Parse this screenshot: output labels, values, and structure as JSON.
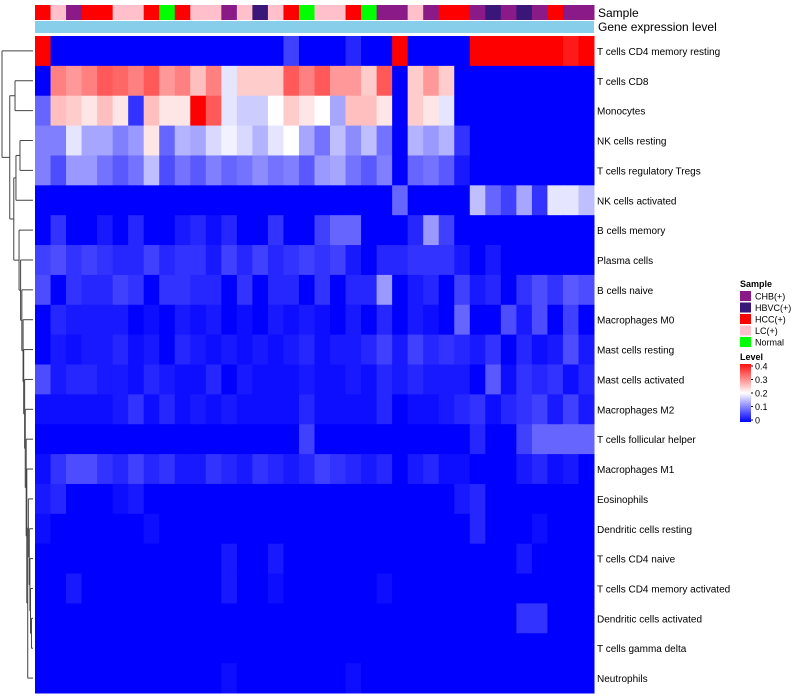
{
  "chart_data": {
    "type": "heatmap",
    "annotation_labels": {
      "sample": "Sample",
      "expression": "Gene expression level"
    },
    "rows": [
      "T cells CD4 memory resting",
      "T cells CD8",
      "Monocytes",
      "NK cells resting",
      "T cells regulatory  Tregs",
      "NK cells activated",
      "B cells memory",
      "Plasma cells",
      "B cells naive",
      "Macrophages M0",
      "Mast cells resting",
      "Mast cells activated",
      "Macrophages M2",
      "T cells follicular helper",
      "Macrophages M1",
      "Eosinophils",
      "Dendritic cells resting",
      "T cells CD4 naive",
      "T cells CD4 memory activated",
      "Dendritic cells activated",
      "T cells gamma delta",
      "Neutrophils"
    ],
    "sample_groups": [
      "HCC(+)",
      "LC(+)",
      "CHB(+)",
      "HCC(+)",
      "HCC(+)",
      "LC(+)",
      "LC(+)",
      "HCC(+)",
      "Normal",
      "HCC(+)",
      "LC(+)",
      "LC(+)",
      "CHB(+)",
      "LC(+)",
      "HBVC(+)",
      "LC(+)",
      "HCC(+)",
      "Normal",
      "LC(+)",
      "LC(+)",
      "HCC(+)",
      "Normal",
      "CHB(+)",
      "CHB(+)",
      "LC(+)",
      "CHB(+)",
      "HCC(+)",
      "HCC(+)",
      "CHB(+)",
      "HBVC(+)",
      "CHB(+)",
      "HBVC(+)",
      "CHB(+)",
      "HCC(+)",
      "CHB(+)",
      "CHB(+)"
    ],
    "values": [
      [
        0.4,
        0,
        0,
        0,
        0,
        0,
        0,
        0,
        0,
        0,
        0,
        0,
        0,
        0,
        0,
        0,
        0.05,
        0,
        0,
        0,
        0.03,
        0,
        0,
        0.4,
        0,
        0,
        0,
        0,
        0.4,
        0.4,
        0.4,
        0.4,
        0.4,
        0.4,
        0.38,
        0.4
      ],
      [
        0,
        0.3,
        0.28,
        0.3,
        0.33,
        0.32,
        0.3,
        0.33,
        0.28,
        0.3,
        0.25,
        0.3,
        0.18,
        0.24,
        0.24,
        0.24,
        0.33,
        0.3,
        0.33,
        0.28,
        0.28,
        0.24,
        0.33,
        0,
        0.24,
        0.28,
        0.24,
        0,
        0,
        0,
        0,
        0,
        0,
        0,
        0,
        0
      ],
      [
        0.08,
        0.25,
        0.24,
        0.22,
        0.25,
        0.22,
        0.04,
        0.25,
        0.22,
        0.22,
        0.4,
        0.33,
        0.18,
        0.16,
        0.16,
        0.2,
        0.24,
        0.22,
        0.2,
        0.13,
        0.25,
        0.25,
        0.22,
        0,
        0.24,
        0.22,
        0.18,
        0,
        0,
        0,
        0,
        0,
        0,
        0,
        0,
        0
      ],
      [
        0.1,
        0.1,
        0.18,
        0.13,
        0.13,
        0.1,
        0.12,
        0.22,
        0.08,
        0.14,
        0.13,
        0.17,
        0.19,
        0.17,
        0.14,
        0.18,
        0.2,
        0.13,
        0.09,
        0.15,
        0.11,
        0.15,
        0.09,
        0,
        0.14,
        0.12,
        0.14,
        0.04,
        0,
        0,
        0,
        0,
        0,
        0,
        0,
        0
      ],
      [
        0.1,
        0.06,
        0.12,
        0.12,
        0.09,
        0.07,
        0.09,
        0.15,
        0.06,
        0.09,
        0.07,
        0.1,
        0.08,
        0.09,
        0.11,
        0.09,
        0.1,
        0.07,
        0.12,
        0.13,
        0.09,
        0.07,
        0.1,
        0,
        0.08,
        0.09,
        0.07,
        0.02,
        0,
        0,
        0,
        0,
        0,
        0,
        0,
        0
      ],
      [
        0,
        0,
        0,
        0,
        0,
        0,
        0,
        0,
        0,
        0,
        0,
        0,
        0,
        0,
        0,
        0,
        0,
        0,
        0,
        0,
        0,
        0,
        0,
        0.08,
        0,
        0,
        0,
        0,
        0.15,
        0.08,
        0.05,
        0.13,
        0.04,
        0.18,
        0.18,
        0.15
      ],
      [
        0,
        0.04,
        0,
        0,
        0.02,
        0,
        0.03,
        0,
        0,
        0.02,
        0.03,
        0.01,
        0.03,
        0,
        0,
        0.04,
        0,
        0,
        0.05,
        0.08,
        0.08,
        0,
        0,
        0,
        0.03,
        0.12,
        0.05,
        0,
        0,
        0,
        0,
        0,
        0,
        0,
        0,
        0
      ],
      [
        0.05,
        0.06,
        0.04,
        0.05,
        0.04,
        0.03,
        0.03,
        0.05,
        0.03,
        0.04,
        0.04,
        0.02,
        0.05,
        0.03,
        0.05,
        0.03,
        0.04,
        0.05,
        0.04,
        0.05,
        0.02,
        0,
        0.03,
        0.03,
        0.04,
        0.04,
        0.04,
        0.02,
        0,
        0.02,
        0,
        0,
        0,
        0,
        0,
        0
      ],
      [
        0.06,
        0,
        0.04,
        0.03,
        0.03,
        0.05,
        0.04,
        0,
        0.04,
        0.04,
        0.03,
        0.03,
        0,
        0.04,
        0,
        0.03,
        0.03,
        0,
        0.04,
        0,
        0.03,
        0.03,
        0.12,
        0,
        0.02,
        0.03,
        0,
        0.05,
        0.02,
        0.03,
        0,
        0.04,
        0.06,
        0.04,
        0.07,
        0.06
      ],
      [
        0,
        0.03,
        0.02,
        0.02,
        0.02,
        0.02,
        0,
        0.01,
        0,
        0.02,
        0.01,
        0.02,
        0,
        0.01,
        0,
        0.02,
        0.01,
        0.02,
        0.01,
        0,
        0.02,
        0,
        0.03,
        0,
        0.02,
        0.01,
        0,
        0.08,
        0,
        0,
        0.06,
        0.02,
        0.06,
        0,
        0.05,
        0
      ],
      [
        0,
        0.02,
        0.01,
        0.02,
        0.02,
        0.03,
        0.01,
        0.02,
        0,
        0.03,
        0.02,
        0.01,
        0.02,
        0.01,
        0.02,
        0.01,
        0.02,
        0.03,
        0.01,
        0.02,
        0.02,
        0.03,
        0.05,
        0.02,
        0.05,
        0.03,
        0.04,
        0.03,
        0.02,
        0.04,
        0,
        0.03,
        0.01,
        0.02,
        0.06,
        0.02
      ],
      [
        0.06,
        0.02,
        0.03,
        0.03,
        0.02,
        0.02,
        0.01,
        0.03,
        0.02,
        0.01,
        0.01,
        0.03,
        0,
        0.02,
        0.01,
        0.01,
        0.01,
        0.02,
        0.01,
        0.01,
        0.02,
        0.01,
        0.03,
        0.02,
        0.03,
        0.02,
        0.02,
        0.02,
        0,
        0.07,
        0.01,
        0.04,
        0.03,
        0.04,
        0.01,
        0.03
      ],
      [
        0.01,
        0.01,
        0.01,
        0.01,
        0.01,
        0.02,
        0.04,
        0.01,
        0.03,
        0.01,
        0.02,
        0.01,
        0.02,
        0.01,
        0.01,
        0.01,
        0.01,
        0.03,
        0.01,
        0.01,
        0.01,
        0.01,
        0.03,
        0,
        0.01,
        0.01,
        0.02,
        0.03,
        0.04,
        0.01,
        0.03,
        0.04,
        0.05,
        0.02,
        0.05,
        0.02
      ],
      [
        0,
        0,
        0,
        0,
        0,
        0,
        0,
        0,
        0,
        0,
        0,
        0,
        0,
        0,
        0,
        0,
        0,
        0.05,
        0,
        0,
        0,
        0,
        0,
        0,
        0,
        0,
        0,
        0,
        0.03,
        0,
        0,
        0.05,
        0.08,
        0.08,
        0.08,
        0.08
      ],
      [
        0.01,
        0.04,
        0.06,
        0.06,
        0.04,
        0.03,
        0.05,
        0.03,
        0.04,
        0.02,
        0.02,
        0.04,
        0.03,
        0.02,
        0.04,
        0.03,
        0.02,
        0.03,
        0.05,
        0.04,
        0.03,
        0.02,
        0.03,
        0,
        0.02,
        0.03,
        0.01,
        0.01,
        0,
        0,
        0,
        0.02,
        0.03,
        0.01,
        0.02,
        0
      ],
      [
        0.02,
        0.03,
        0,
        0,
        0,
        0.01,
        0.02,
        0,
        0,
        0,
        0,
        0,
        0,
        0,
        0,
        0,
        0,
        0,
        0,
        0,
        0,
        0,
        0,
        0,
        0,
        0,
        0,
        0.02,
        0.03,
        0,
        0,
        0,
        0,
        0,
        0,
        0
      ],
      [
        0.01,
        0,
        0,
        0,
        0,
        0,
        0,
        0.01,
        0,
        0,
        0,
        0,
        0,
        0,
        0,
        0,
        0,
        0,
        0,
        0,
        0,
        0,
        0,
        0,
        0,
        0,
        0,
        0,
        0.03,
        0,
        0,
        0,
        0.01,
        0,
        0,
        0
      ],
      [
        0,
        0,
        0,
        0,
        0,
        0,
        0,
        0,
        0,
        0,
        0,
        0,
        0.02,
        0,
        0,
        0.02,
        0,
        0,
        0,
        0,
        0,
        0,
        0,
        0,
        0,
        0,
        0,
        0,
        0,
        0,
        0,
        0.02,
        0,
        0,
        0,
        0
      ],
      [
        0,
        0,
        0.02,
        0,
        0,
        0,
        0,
        0,
        0,
        0,
        0,
        0,
        0.02,
        0,
        0,
        0.01,
        0,
        0,
        0,
        0,
        0,
        0,
        0.01,
        0,
        0,
        0,
        0,
        0,
        0,
        0,
        0,
        0,
        0,
        0,
        0,
        0
      ],
      [
        0,
        0,
        0,
        0,
        0,
        0,
        0,
        0,
        0,
        0,
        0,
        0,
        0,
        0,
        0,
        0,
        0,
        0,
        0,
        0,
        0,
        0,
        0,
        0,
        0,
        0,
        0,
        0,
        0,
        0,
        0,
        0.04,
        0.04,
        0,
        0,
        0
      ],
      [
        0,
        0,
        0,
        0,
        0,
        0,
        0,
        0,
        0,
        0,
        0,
        0,
        0,
        0,
        0,
        0,
        0,
        0,
        0,
        0,
        0,
        0,
        0,
        0,
        0,
        0,
        0,
        0,
        0,
        0,
        0,
        0,
        0,
        0,
        0,
        0
      ],
      [
        0,
        0,
        0,
        0,
        0,
        0,
        0,
        0,
        0,
        0,
        0,
        0,
        0.01,
        0,
        0,
        0,
        0,
        0,
        0,
        0,
        0.01,
        0,
        0,
        0,
        0,
        0,
        0,
        0,
        0,
        0,
        0,
        0,
        0,
        0,
        0,
        0
      ]
    ],
    "value_range": [
      0,
      0.4
    ],
    "color_scale": {
      "low": "#0000ff",
      "mid": "#ffffff",
      "high": "#ff0000"
    },
    "legend": {
      "sample_title": "Sample",
      "groups": [
        {
          "name": "CHB(+)",
          "color": "#8b1a89"
        },
        {
          "name": "HBVC(+)",
          "color": "#3b1679"
        },
        {
          "name": "HCC(+)",
          "color": "#ff0000"
        },
        {
          "name": "LC(+)",
          "color": "#ffc0cb"
        },
        {
          "name": "Normal",
          "color": "#00ff00"
        }
      ],
      "level_title": "Level",
      "level_ticks": [
        "0.4",
        "0.3",
        "0.2",
        "0.1",
        "0"
      ],
      "level_tick_values": [
        0.4,
        0.3,
        0.2,
        0.1,
        0
      ]
    },
    "expression_bar_color": "#87ceeb"
  }
}
